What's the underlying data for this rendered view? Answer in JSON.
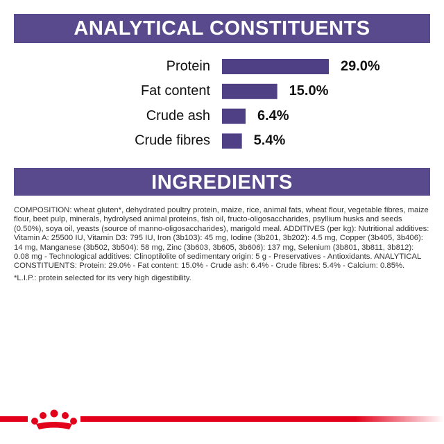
{
  "header": {
    "title": "ANALYTICAL CONSTITUENTS"
  },
  "chart_data": {
    "type": "bar",
    "orientation": "horizontal",
    "categories": [
      "Protein",
      "Fat content",
      "Crude ash",
      "Crude fibres"
    ],
    "values": [
      29.0,
      15.0,
      6.4,
      5.4
    ],
    "value_labels": [
      "29.0%",
      "15.0%",
      "6.4%",
      "5.4%"
    ],
    "color": "#4f3f85"
  },
  "ingredients": {
    "title": "INGREDIENTS",
    "composition": "COMPOSITION: wheat gluten*, dehydrated poultry protein, maize, rice, animal fats, wheat flour, vegetable fibres, maize flour, beet pulp, minerals, hydrolysed animal proteins, fish oil, fructo-oligosaccharides, psyllium husks and seeds (0.50%), soya oil, yeasts (source of manno-oligosaccharides), marigold meal. ADDITIVES (per kg): Nutritional additives: Vitamin A: 25500 IU, Vitamin D3: 795 IU, Iron (3b103): 45 mg, Iodine (3b201, 3b202): 4.5 mg, Copper (3b405, 3b406): 14 mg, Manganese (3b502, 3b504): 58 mg, Zinc (3b603, 3b605, 3b606): 137 mg, Selenium (3b801, 3b811, 3b812): 0.08 mg - Technological additives: Clinoptilolite of sedimentary origin: 5 g - Preservatives - Antioxidants. ANALYTICAL CONSTITUENTS: Protein: 29.0% - Fat content: 15.0% - Crude ash: 6.4% - Crude fibres: 5.4% - Calcium: 0.85%.",
    "note": "*L.I.P.: protein selected for its very high digestibility."
  }
}
